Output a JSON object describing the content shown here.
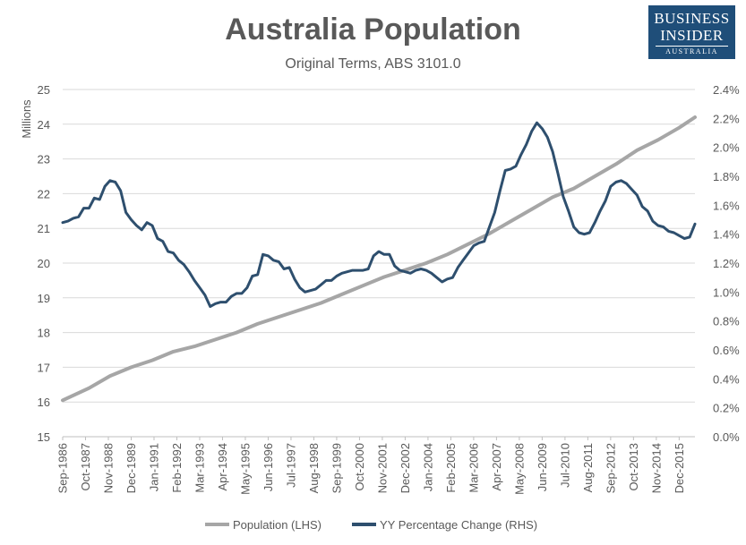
{
  "header": {
    "title": "Australia Population",
    "subtitle": "Original Terms, ABS 3101.0"
  },
  "logo": {
    "line1": "BUSINESS",
    "line2": "INSIDER",
    "line3": "AUSTRALIA",
    "color": "#1f4e79"
  },
  "chart_data": {
    "type": "line",
    "title": "Australia Population",
    "subtitle": "Original Terms, ABS 3101.0",
    "ylabel_left": "Millions",
    "ylim_left": [
      15,
      25
    ],
    "yticks_left": [
      "15",
      "16",
      "17",
      "18",
      "19",
      "20",
      "21",
      "22",
      "23",
      "24",
      "25"
    ],
    "ylim_right": [
      0,
      2.4
    ],
    "yticks_right": [
      "0.0%",
      "0.2%",
      "0.4%",
      "0.6%",
      "0.8%",
      "1.0%",
      "1.2%",
      "1.4%",
      "1.6%",
      "1.8%",
      "2.0%",
      "2.2%",
      "2.4%"
    ],
    "x_start": 1986.75,
    "x_end": 2016.75,
    "x_tick_labels": [
      "Sep-1986",
      "Oct-1987",
      "Nov-1988",
      "Dec-1989",
      "Jan-1991",
      "Feb-1992",
      "Mar-1993",
      "Apr-1994",
      "May-1995",
      "Jun-1996",
      "Jul-1997",
      "Aug-1998",
      "Sep-1999",
      "Oct-2000",
      "Nov-2001",
      "Dec-2002",
      "Jan-2004",
      "Feb-2005",
      "Mar-2006",
      "Apr-2007",
      "May-2008",
      "Jun-2009",
      "Jul-2010",
      "Aug-2011",
      "Sep-2012",
      "Oct-2013",
      "Nov-2014",
      "Dec-2015"
    ],
    "grid": true,
    "legend_position": "bottom",
    "series": [
      {
        "name": "Population (LHS)",
        "axis": "left",
        "color": "#a6a6a6",
        "points": [
          [
            1986.75,
            16.05
          ],
          [
            1988.0,
            16.4
          ],
          [
            1989.0,
            16.75
          ],
          [
            1990.0,
            17.0
          ],
          [
            1991.0,
            17.2
          ],
          [
            1992.0,
            17.45
          ],
          [
            1993.0,
            17.6
          ],
          [
            1994.0,
            17.8
          ],
          [
            1995.0,
            18.0
          ],
          [
            1996.0,
            18.25
          ],
          [
            1997.0,
            18.45
          ],
          [
            1998.0,
            18.65
          ],
          [
            1999.0,
            18.85
          ],
          [
            2000.0,
            19.1
          ],
          [
            2001.0,
            19.35
          ],
          [
            2002.0,
            19.6
          ],
          [
            2003.0,
            19.8
          ],
          [
            2004.0,
            20.0
          ],
          [
            2005.0,
            20.25
          ],
          [
            2006.0,
            20.55
          ],
          [
            2007.0,
            20.85
          ],
          [
            2008.0,
            21.2
          ],
          [
            2009.0,
            21.55
          ],
          [
            2010.0,
            21.9
          ],
          [
            2011.0,
            22.15
          ],
          [
            2012.0,
            22.5
          ],
          [
            2013.0,
            22.85
          ],
          [
            2014.0,
            23.25
          ],
          [
            2015.0,
            23.55
          ],
          [
            2016.0,
            23.9
          ],
          [
            2016.75,
            24.2
          ]
        ]
      },
      {
        "name": "YY Percentage Change (RHS)",
        "axis": "right",
        "color": "#2e4f6e",
        "points": [
          [
            1986.75,
            1.48
          ],
          [
            1987.0,
            1.49
          ],
          [
            1987.25,
            1.51
          ],
          [
            1987.5,
            1.52
          ],
          [
            1987.75,
            1.58
          ],
          [
            1988.0,
            1.58
          ],
          [
            1988.25,
            1.65
          ],
          [
            1988.5,
            1.64
          ],
          [
            1988.75,
            1.73
          ],
          [
            1989.0,
            1.77
          ],
          [
            1989.25,
            1.76
          ],
          [
            1989.5,
            1.7
          ],
          [
            1989.75,
            1.55
          ],
          [
            1990.0,
            1.5
          ],
          [
            1990.25,
            1.46
          ],
          [
            1990.5,
            1.43
          ],
          [
            1990.75,
            1.48
          ],
          [
            1991.0,
            1.46
          ],
          [
            1991.25,
            1.37
          ],
          [
            1991.5,
            1.35
          ],
          [
            1991.75,
            1.28
          ],
          [
            1992.0,
            1.27
          ],
          [
            1992.25,
            1.22
          ],
          [
            1992.5,
            1.19
          ],
          [
            1992.75,
            1.14
          ],
          [
            1993.0,
            1.08
          ],
          [
            1993.25,
            1.03
          ],
          [
            1993.5,
            0.98
          ],
          [
            1993.75,
            0.9
          ],
          [
            1994.0,
            0.92
          ],
          [
            1994.25,
            0.93
          ],
          [
            1994.5,
            0.93
          ],
          [
            1994.75,
            0.97
          ],
          [
            1995.0,
            0.99
          ],
          [
            1995.25,
            0.99
          ],
          [
            1995.5,
            1.03
          ],
          [
            1995.75,
            1.11
          ],
          [
            1996.0,
            1.12
          ],
          [
            1996.25,
            1.26
          ],
          [
            1996.5,
            1.25
          ],
          [
            1996.75,
            1.22
          ],
          [
            1997.0,
            1.21
          ],
          [
            1997.25,
            1.16
          ],
          [
            1997.5,
            1.17
          ],
          [
            1997.75,
            1.09
          ],
          [
            1998.0,
            1.03
          ],
          [
            1998.25,
            1.0
          ],
          [
            1998.5,
            1.01
          ],
          [
            1998.75,
            1.02
          ],
          [
            1999.0,
            1.05
          ],
          [
            1999.25,
            1.08
          ],
          [
            1999.5,
            1.08
          ],
          [
            1999.75,
            1.11
          ],
          [
            2000.0,
            1.13
          ],
          [
            2000.25,
            1.14
          ],
          [
            2000.5,
            1.15
          ],
          [
            2000.75,
            1.15
          ],
          [
            2001.0,
            1.15
          ],
          [
            2001.25,
            1.16
          ],
          [
            2001.5,
            1.25
          ],
          [
            2001.75,
            1.28
          ],
          [
            2002.0,
            1.26
          ],
          [
            2002.25,
            1.26
          ],
          [
            2002.5,
            1.18
          ],
          [
            2002.75,
            1.15
          ],
          [
            2003.0,
            1.14
          ],
          [
            2003.25,
            1.13
          ],
          [
            2003.5,
            1.15
          ],
          [
            2003.75,
            1.16
          ],
          [
            2004.0,
            1.15
          ],
          [
            2004.25,
            1.13
          ],
          [
            2004.5,
            1.1
          ],
          [
            2004.75,
            1.07
          ],
          [
            2005.0,
            1.09
          ],
          [
            2005.25,
            1.1
          ],
          [
            2005.5,
            1.17
          ],
          [
            2005.75,
            1.22
          ],
          [
            2006.0,
            1.27
          ],
          [
            2006.25,
            1.32
          ],
          [
            2006.5,
            1.34
          ],
          [
            2006.75,
            1.35
          ],
          [
            2007.0,
            1.45
          ],
          [
            2007.25,
            1.55
          ],
          [
            2007.5,
            1.7
          ],
          [
            2007.75,
            1.84
          ],
          [
            2008.0,
            1.85
          ],
          [
            2008.25,
            1.87
          ],
          [
            2008.5,
            1.95
          ],
          [
            2008.75,
            2.02
          ],
          [
            2009.0,
            2.11
          ],
          [
            2009.25,
            2.17
          ],
          [
            2009.5,
            2.13
          ],
          [
            2009.75,
            2.07
          ],
          [
            2010.0,
            1.97
          ],
          [
            2010.25,
            1.82
          ],
          [
            2010.5,
            1.66
          ],
          [
            2010.75,
            1.56
          ],
          [
            2011.0,
            1.45
          ],
          [
            2011.25,
            1.41
          ],
          [
            2011.5,
            1.4
          ],
          [
            2011.75,
            1.41
          ],
          [
            2012.0,
            1.48
          ],
          [
            2012.25,
            1.56
          ],
          [
            2012.5,
            1.63
          ],
          [
            2012.75,
            1.73
          ],
          [
            2013.0,
            1.76
          ],
          [
            2013.25,
            1.77
          ],
          [
            2013.5,
            1.75
          ],
          [
            2013.75,
            1.71
          ],
          [
            2014.0,
            1.67
          ],
          [
            2014.25,
            1.59
          ],
          [
            2014.5,
            1.56
          ],
          [
            2014.75,
            1.49
          ],
          [
            2015.0,
            1.46
          ],
          [
            2015.25,
            1.45
          ],
          [
            2015.5,
            1.42
          ],
          [
            2015.75,
            1.41
          ],
          [
            2016.0,
            1.39
          ],
          [
            2016.25,
            1.37
          ],
          [
            2016.5,
            1.38
          ],
          [
            2016.75,
            1.47
          ]
        ]
      }
    ]
  }
}
